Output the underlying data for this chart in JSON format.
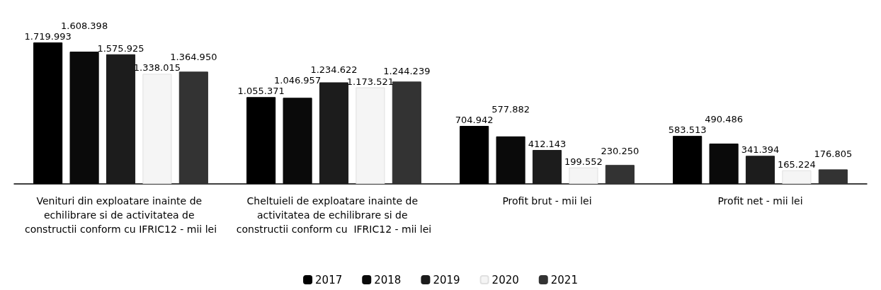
{
  "chart_data": {
    "type": "bar",
    "categories": [
      "Venituri din exploatare inainte de echilibrare si de activitatea de constructii conform cu IFRIC12 - mii lei",
      "Cheltuieli de exploatare inainte de activitatea de echilibrare si de constructii conform cu  IFRIC12 - mii lei",
      "Profit brut - mii lei",
      "Profit net - mii lei"
    ],
    "series": [
      {
        "name": "2017",
        "color": "#000000",
        "values": [
          1719993,
          1055371,
          704942,
          583513
        ],
        "value_labels": [
          "1.719.993",
          "1.055.371",
          "704.942",
          "583.513"
        ]
      },
      {
        "name": "2018",
        "color": "#0a0a0a",
        "values": [
          1608398,
          1046957,
          577882,
          490486
        ],
        "value_labels": [
          "1.608.398",
          "1.046.957",
          "577.882",
          "490.486"
        ]
      },
      {
        "name": "2019",
        "color": "#1c1c1c",
        "values": [
          1575925,
          1234622,
          412143,
          341394
        ],
        "value_labels": [
          "1.575.925",
          "1.234.622",
          "412.143",
          "341.394"
        ]
      },
      {
        "name": "2020",
        "color": "#f5f5f5",
        "values": [
          1338015,
          1173521,
          199552,
          165224
        ],
        "value_labels": [
          "1.338.015",
          "1.173.521",
          "199.552",
          "165.224"
        ]
      },
      {
        "name": "2021",
        "color": "#333333",
        "values": [
          1364950,
          1244239,
          230250,
          176805
        ],
        "value_labels": [
          "1.364.950",
          "1.244.239",
          "230.250",
          "176.805"
        ]
      }
    ],
    "legend": "bottom"
  }
}
